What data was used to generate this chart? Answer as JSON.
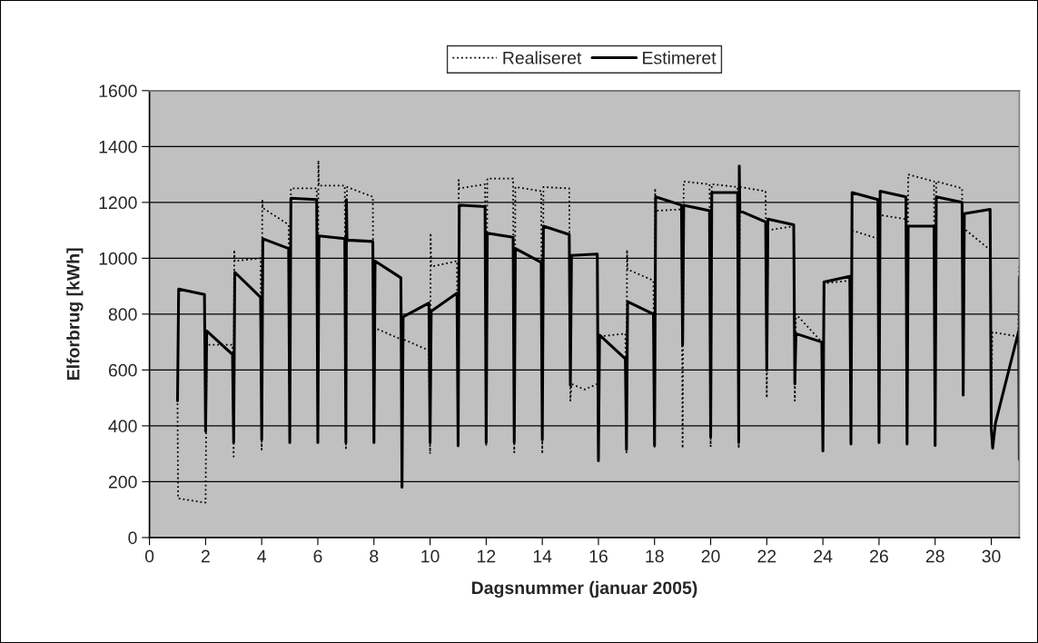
{
  "chart_data": {
    "type": "line",
    "xlabel": "Dagsnummer (januar 2005)",
    "ylabel": "Elforbrug [kWh]",
    "xlim": [
      0,
      31
    ],
    "xticks": [
      0,
      2,
      4,
      6,
      8,
      10,
      12,
      14,
      16,
      18,
      20,
      22,
      24,
      26,
      28,
      30
    ],
    "ylim": [
      0,
      1600
    ],
    "yticks": [
      0,
      200,
      400,
      600,
      800,
      1000,
      1200,
      1400,
      1600
    ],
    "grid": "y",
    "legend": "top",
    "marker": "none",
    "series": [
      {
        "name": "Realiseret",
        "color": "#000000",
        "line_style": "dotted",
        "x": [
          1,
          1.02,
          2,
          2.04,
          2.96,
          3,
          3.02,
          3.04,
          3.96,
          4,
          4.02,
          4.04,
          4.96,
          5,
          5.04,
          5.96,
          6,
          6.02,
          6.04,
          6.96,
          7,
          7.04,
          7.96,
          8,
          8.02,
          8.04,
          8.96,
          9,
          9.04,
          9.96,
          10,
          10.02,
          10.04,
          10.96,
          11,
          11.02,
          11.04,
          11.96,
          12,
          12.04,
          12.96,
          13,
          13.04,
          13.96,
          14,
          14.04,
          14.96,
          15,
          15.04,
          15.5,
          15.96,
          16,
          16.04,
          16.96,
          17,
          17.02,
          17.04,
          17.96,
          18,
          18.02,
          18.04,
          18.96,
          19,
          19.04,
          19.96,
          20,
          20.04,
          20.96,
          21,
          21.04,
          21.96,
          22,
          22.04,
          22.96,
          23,
          23.04,
          23.96,
          24,
          24.04,
          24.96,
          25,
          25.04,
          25.96,
          26,
          26.04,
          26.96,
          27,
          27.04,
          27.96,
          28,
          28.04,
          28.96,
          29,
          29.04,
          29.96,
          30,
          30.04,
          30.96,
          31
        ],
        "values": [
          480,
          140,
          125,
          690,
          690,
          290,
          1030,
          990,
          1000,
          315,
          1210,
          1180,
          1120,
          340,
          1250,
          1250,
          340,
          1350,
          1260,
          1260,
          320,
          1255,
          1220,
          340,
          660,
          750,
          710,
          540,
          710,
          670,
          300,
          1090,
          970,
          990,
          320,
          1280,
          1250,
          1265,
          325,
          1285,
          1285,
          305,
          1255,
          1240,
          300,
          1255,
          1250,
          490,
          550,
          530,
          550,
          280,
          720,
          730,
          305,
          1030,
          960,
          920,
          325,
          1250,
          1170,
          1175,
          320,
          1275,
          1265,
          325,
          1265,
          1255,
          320,
          1255,
          1240,
          500,
          1100,
          1115,
          490,
          800,
          700,
          305,
          910,
          920,
          335,
          1100,
          1070,
          340,
          1155,
          1140,
          330,
          1300,
          1275,
          330,
          1275,
          1250,
          510,
          1105,
          1030,
          470,
          735,
          720,
          980
        ]
      },
      {
        "name": "Estimeret",
        "color": "#000000",
        "line_style": "solid",
        "x": [
          1,
          1.04,
          1.96,
          2,
          2.04,
          2.96,
          3,
          3.04,
          3.96,
          4,
          4.04,
          4.96,
          5,
          5.04,
          5.96,
          6,
          6.04,
          6.96,
          7,
          7.02,
          7.04,
          7.96,
          8,
          8.04,
          8.96,
          9,
          9.04,
          9.96,
          10,
          10.04,
          10.96,
          11,
          11.04,
          11.96,
          12,
          12.04,
          12.96,
          13,
          13.04,
          13.96,
          14,
          14.04,
          14.96,
          15,
          15.04,
          15.96,
          16,
          16.04,
          16.96,
          17,
          17.04,
          17.96,
          18,
          18.04,
          18.96,
          19,
          19.04,
          19.96,
          20,
          20.04,
          20.96,
          21,
          21.02,
          21.04,
          21.96,
          22,
          22.04,
          22.96,
          23,
          23.04,
          23.96,
          24,
          24.04,
          24.96,
          25,
          25.04,
          25.96,
          26,
          26.04,
          26.96,
          27,
          27.04,
          27.96,
          28,
          28.04,
          28.96,
          29,
          29.04,
          29.96,
          30,
          30.05,
          30.15,
          30.98,
          31,
          31
        ],
        "values": [
          490,
          890,
          870,
          380,
          740,
          655,
          340,
          950,
          860,
          350,
          1070,
          1035,
          340,
          1215,
          1210,
          340,
          1080,
          1070,
          340,
          1210,
          1065,
          1060,
          340,
          990,
          930,
          180,
          790,
          840,
          340,
          810,
          875,
          330,
          1190,
          1185,
          340,
          1090,
          1075,
          340,
          1035,
          985,
          350,
          1115,
          1085,
          545,
          1010,
          1015,
          275,
          725,
          640,
          315,
          845,
          800,
          330,
          1220,
          1190,
          690,
          1190,
          1170,
          360,
          1235,
          1235,
          340,
          1330,
          1170,
          1130,
          600,
          1140,
          1120,
          550,
          730,
          700,
          310,
          915,
          935,
          335,
          1235,
          1210,
          340,
          1240,
          1220,
          335,
          1115,
          1115,
          330,
          1220,
          1200,
          510,
          1160,
          1175,
          390,
          320,
          410,
          740,
          280,
          930
        ]
      }
    ]
  }
}
